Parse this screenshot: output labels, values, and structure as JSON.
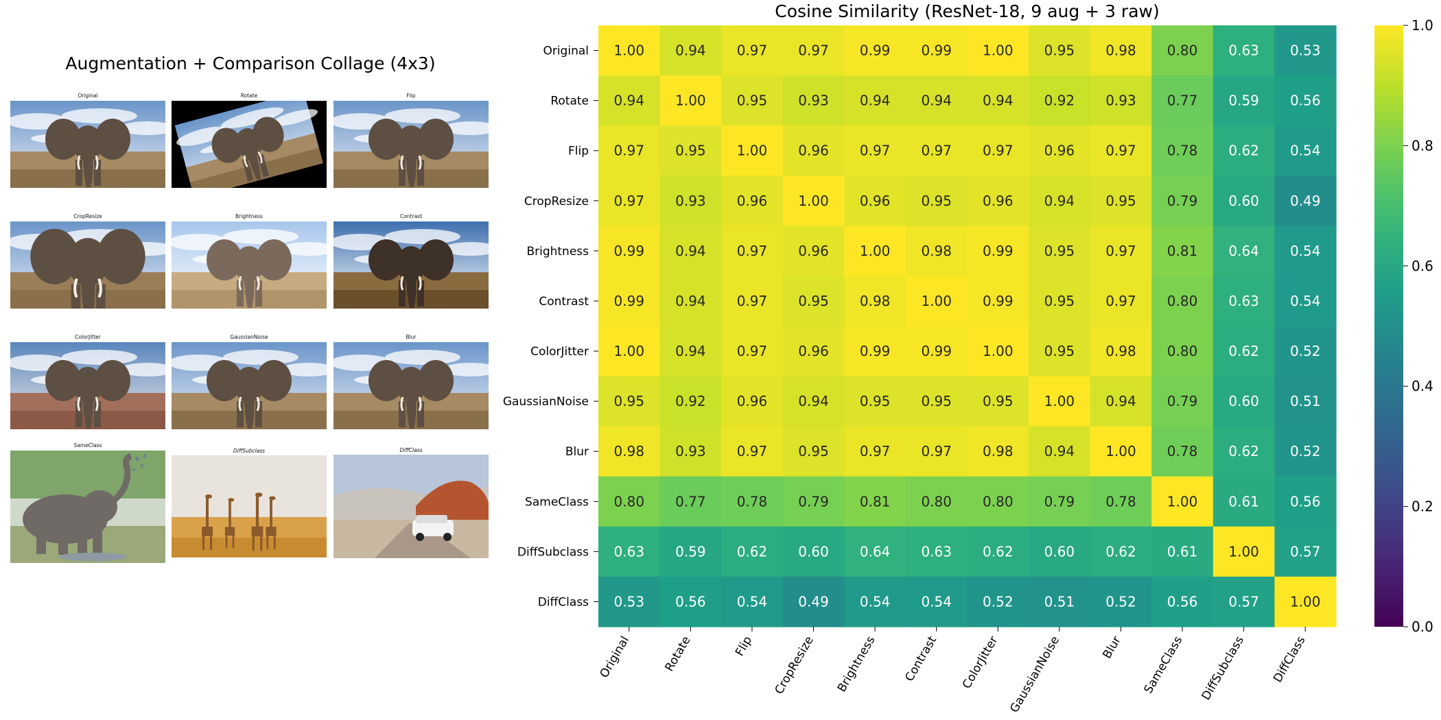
{
  "collage": {
    "title": "Augmentation + Comparison Collage (4x3)",
    "cells": [
      {
        "label": "Original",
        "kind": "elephant-field"
      },
      {
        "label": "Rotate",
        "kind": "elephant-rotated"
      },
      {
        "label": "Flip",
        "kind": "elephant-field"
      },
      {
        "label": "CropResize",
        "kind": "elephant-crop"
      },
      {
        "label": "Brightness",
        "kind": "elephant-bright"
      },
      {
        "label": "Contrast",
        "kind": "elephant-contrast"
      },
      {
        "label": "ColorJitter",
        "kind": "elephant-jitter"
      },
      {
        "label": "GaussianNoise",
        "kind": "elephant-field"
      },
      {
        "label": "Blur",
        "kind": "elephant-field"
      },
      {
        "label": "SameClass",
        "kind": "elephant-splash"
      },
      {
        "label": "DiffSubclass",
        "kind": "giraffes"
      },
      {
        "label": "DiffClass",
        "kind": "suv-desert"
      }
    ]
  },
  "chart_data": {
    "type": "heatmap",
    "title": "Cosine Similarity (ResNet-18, 9 aug + 3 raw)",
    "labels": [
      "Original",
      "Rotate",
      "Flip",
      "CropResize",
      "Brightness",
      "Contrast",
      "ColorJitter",
      "GaussianNoise",
      "Blur",
      "SameClass",
      "DiffSubclass",
      "DiffClass"
    ],
    "matrix": [
      [
        1.0,
        0.94,
        0.97,
        0.97,
        0.99,
        0.99,
        1.0,
        0.95,
        0.98,
        0.8,
        0.63,
        0.53
      ],
      [
        0.94,
        1.0,
        0.95,
        0.93,
        0.94,
        0.94,
        0.94,
        0.92,
        0.93,
        0.77,
        0.59,
        0.56
      ],
      [
        0.97,
        0.95,
        1.0,
        0.96,
        0.97,
        0.97,
        0.97,
        0.96,
        0.97,
        0.78,
        0.62,
        0.54
      ],
      [
        0.97,
        0.93,
        0.96,
        1.0,
        0.96,
        0.95,
        0.96,
        0.94,
        0.95,
        0.79,
        0.6,
        0.49
      ],
      [
        0.99,
        0.94,
        0.97,
        0.96,
        1.0,
        0.98,
        0.99,
        0.95,
        0.97,
        0.81,
        0.64,
        0.54
      ],
      [
        0.99,
        0.94,
        0.97,
        0.95,
        0.98,
        1.0,
        0.99,
        0.95,
        0.97,
        0.8,
        0.63,
        0.54
      ],
      [
        1.0,
        0.94,
        0.97,
        0.96,
        0.99,
        0.99,
        1.0,
        0.95,
        0.98,
        0.8,
        0.62,
        0.52
      ],
      [
        0.95,
        0.92,
        0.96,
        0.94,
        0.95,
        0.95,
        0.95,
        1.0,
        0.94,
        0.79,
        0.6,
        0.51
      ],
      [
        0.98,
        0.93,
        0.97,
        0.95,
        0.97,
        0.97,
        0.98,
        0.94,
        1.0,
        0.78,
        0.62,
        0.52
      ],
      [
        0.8,
        0.77,
        0.78,
        0.79,
        0.81,
        0.8,
        0.8,
        0.79,
        0.78,
        1.0,
        0.61,
        0.56
      ],
      [
        0.63,
        0.59,
        0.62,
        0.6,
        0.64,
        0.63,
        0.62,
        0.6,
        0.62,
        0.61,
        1.0,
        0.57
      ],
      [
        0.53,
        0.56,
        0.54,
        0.49,
        0.54,
        0.54,
        0.52,
        0.51,
        0.52,
        0.56,
        0.57,
        1.0
      ]
    ],
    "value_format": "0.00",
    "colormap": "viridis",
    "vmin": 0.0,
    "vmax": 1.0,
    "colorbar_ticks": [
      0.0,
      0.2,
      0.4,
      0.6,
      0.8,
      1.0
    ]
  }
}
